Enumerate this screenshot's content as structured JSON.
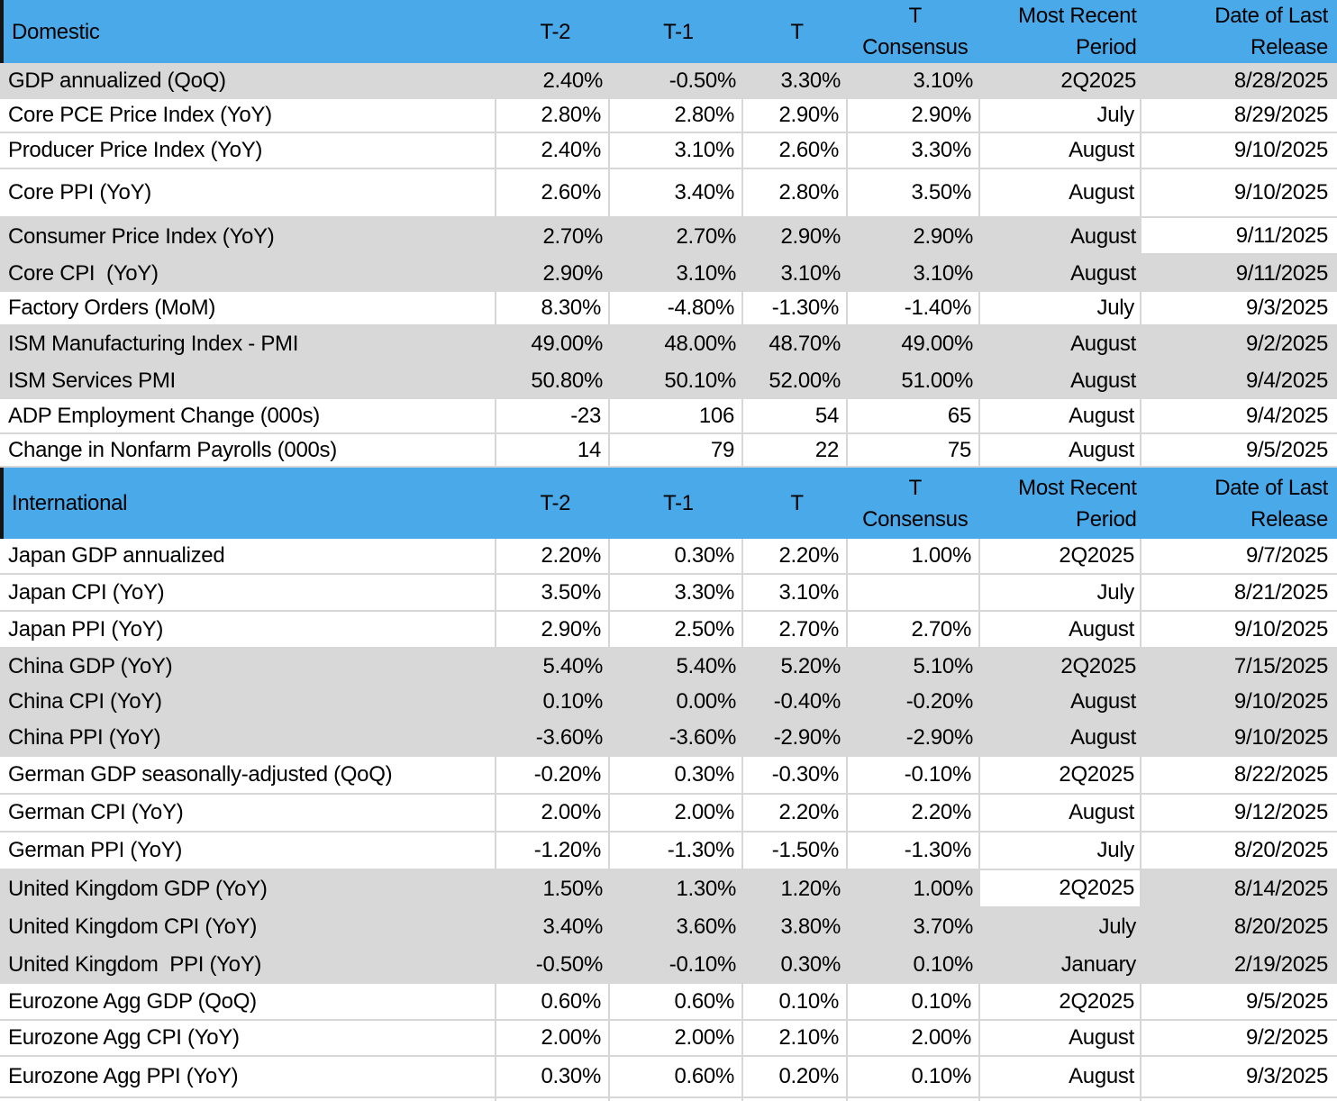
{
  "colors": {
    "header_blue": "#4AA9E9",
    "row_gray": "#D8D8D8",
    "gridline": "#D7D7D7",
    "header_edge_black": "#141414"
  },
  "columns": [
    "T-2",
    "T-1",
    "T",
    "T\nConsensus",
    "Most Recent\nPeriod",
    "Date of Last\nRelease"
  ],
  "sections": [
    {
      "title": "Domestic",
      "rows": [
        {
          "label": "GDP annualized (QoQ)",
          "t2": "2.40%",
          "t1": "-0.50%",
          "t": "3.30%",
          "consensus": "3.10%",
          "period": "2Q2025",
          "date": "8/28/2025",
          "shade": true,
          "white_cells": []
        },
        {
          "label": "Core PCE Price Index (YoY)",
          "t2": "2.80%",
          "t1": "2.80%",
          "t": "2.90%",
          "consensus": "2.90%",
          "period": "July",
          "date": "8/29/2025",
          "shade": false,
          "white_cells": []
        },
        {
          "label": "Producer Price Index (YoY)",
          "t2": "2.40%",
          "t1": "3.10%",
          "t": "2.60%",
          "consensus": "3.30%",
          "period": "August",
          "date": "9/10/2025",
          "shade": false,
          "white_cells": []
        },
        {
          "label": "Core PPI (YoY)",
          "t2": "2.60%",
          "t1": "3.40%",
          "t": "2.80%",
          "consensus": "3.50%",
          "period": "August",
          "date": "9/10/2025",
          "shade": false,
          "white_cells": []
        },
        {
          "label": "Consumer Price Index (YoY)",
          "t2": "2.70%",
          "t1": "2.70%",
          "t": "2.90%",
          "consensus": "2.90%",
          "period": "August",
          "date": "9/11/2025",
          "shade": true,
          "white_cells": [
            "date"
          ]
        },
        {
          "label": "Core CPI  (YoY)",
          "t2": "2.90%",
          "t1": "3.10%",
          "t": "3.10%",
          "consensus": "3.10%",
          "period": "August",
          "date": "9/11/2025",
          "shade": true,
          "white_cells": []
        },
        {
          "label": "Factory Orders (MoM)",
          "t2": "8.30%",
          "t1": "-4.80%",
          "t": "-1.30%",
          "consensus": "-1.40%",
          "period": "July",
          "date": "9/3/2025",
          "shade": false,
          "white_cells": []
        },
        {
          "label": "ISM Manufacturing Index - PMI",
          "t2": "49.00%",
          "t1": "48.00%",
          "t": "48.70%",
          "consensus": "49.00%",
          "period": "August",
          "date": "9/2/2025",
          "shade": true,
          "white_cells": []
        },
        {
          "label": "ISM Services PMI",
          "t2": "50.80%",
          "t1": "50.10%",
          "t": "52.00%",
          "consensus": "51.00%",
          "period": "August",
          "date": "9/4/2025",
          "shade": true,
          "white_cells": []
        },
        {
          "label": "ADP Employment Change (000s)",
          "t2": "-23",
          "t1": "106",
          "t": "54",
          "consensus": "65",
          "period": "August",
          "date": "9/4/2025",
          "shade": false,
          "white_cells": []
        },
        {
          "label": "Change in Nonfarm Payrolls (000s)",
          "t2": "14",
          "t1": "79",
          "t": "22",
          "consensus": "75",
          "period": "August",
          "date": "9/5/2025",
          "shade": false,
          "white_cells": []
        }
      ]
    },
    {
      "title": "International",
      "rows": [
        {
          "label": "Japan GDP annualized",
          "t2": "2.20%",
          "t1": "0.30%",
          "t": "2.20%",
          "consensus": "1.00%",
          "period": "2Q2025",
          "date": "9/7/2025",
          "shade": false,
          "white_cells": []
        },
        {
          "label": "Japan CPI (YoY)",
          "t2": "3.50%",
          "t1": "3.30%",
          "t": "3.10%",
          "consensus": "",
          "period": "July",
          "date": "8/21/2025",
          "shade": false,
          "white_cells": []
        },
        {
          "label": "Japan PPI (YoY)",
          "t2": "2.90%",
          "t1": "2.50%",
          "t": "2.70%",
          "consensus": "2.70%",
          "period": "August",
          "date": "9/10/2025",
          "shade": false,
          "white_cells": []
        },
        {
          "label": "China GDP (YoY)",
          "t2": "5.40%",
          "t1": "5.40%",
          "t": "5.20%",
          "consensus": "5.10%",
          "period": "2Q2025",
          "date": "7/15/2025",
          "shade": true,
          "white_cells": []
        },
        {
          "label": "China CPI (YoY)",
          "t2": "0.10%",
          "t1": "0.00%",
          "t": "-0.40%",
          "consensus": "-0.20%",
          "period": "August",
          "date": "9/10/2025",
          "shade": true,
          "white_cells": []
        },
        {
          "label": "China PPI (YoY)",
          "t2": "-3.60%",
          "t1": "-3.60%",
          "t": "-2.90%",
          "consensus": "-2.90%",
          "period": "August",
          "date": "9/10/2025",
          "shade": true,
          "white_cells": []
        },
        {
          "label": "German GDP seasonally-adjusted (QoQ)",
          "t2": "-0.20%",
          "t1": "0.30%",
          "t": "-0.30%",
          "consensus": "-0.10%",
          "period": "2Q2025",
          "date": "8/22/2025",
          "shade": false,
          "white_cells": []
        },
        {
          "label": "German CPI (YoY)",
          "t2": "2.00%",
          "t1": "2.00%",
          "t": "2.20%",
          "consensus": "2.20%",
          "period": "August",
          "date": "9/12/2025",
          "shade": false,
          "white_cells": []
        },
        {
          "label": "German PPI (YoY)",
          "t2": "-1.20%",
          "t1": "-1.30%",
          "t": "-1.50%",
          "consensus": "-1.30%",
          "period": "July",
          "date": "8/20/2025",
          "shade": false,
          "white_cells": []
        },
        {
          "label": "United Kingdom GDP (YoY)",
          "t2": "1.50%",
          "t1": "1.30%",
          "t": "1.20%",
          "consensus": "1.00%",
          "period": "2Q2025",
          "date": "8/14/2025",
          "shade": true,
          "white_cells": [
            "period"
          ]
        },
        {
          "label": "United Kingdom CPI (YoY)",
          "t2": "3.40%",
          "t1": "3.60%",
          "t": "3.80%",
          "consensus": "3.70%",
          "period": "July",
          "date": "8/20/2025",
          "shade": true,
          "white_cells": []
        },
        {
          "label": "United Kingdom  PPI (YoY)",
          "t2": "-0.50%",
          "t1": "-0.10%",
          "t": "0.30%",
          "consensus": "0.10%",
          "period": "January",
          "date": "2/19/2025",
          "shade": true,
          "white_cells": []
        },
        {
          "label": "Eurozone Agg GDP (QoQ)",
          "t2": "0.60%",
          "t1": "0.60%",
          "t": "0.10%",
          "consensus": "0.10%",
          "period": "2Q2025",
          "date": "9/5/2025",
          "shade": false,
          "white_cells": []
        },
        {
          "label": "Eurozone Agg CPI (YoY)",
          "t2": "2.00%",
          "t1": "2.00%",
          "t": "2.10%",
          "consensus": "2.00%",
          "period": "August",
          "date": "9/2/2025",
          "shade": false,
          "white_cells": []
        },
        {
          "label": "Eurozone Agg PPI (YoY)",
          "t2": "0.30%",
          "t1": "0.60%",
          "t": "0.20%",
          "consensus": "0.10%",
          "period": "August",
          "date": "9/3/2025",
          "shade": false,
          "white_cells": []
        }
      ]
    }
  ]
}
